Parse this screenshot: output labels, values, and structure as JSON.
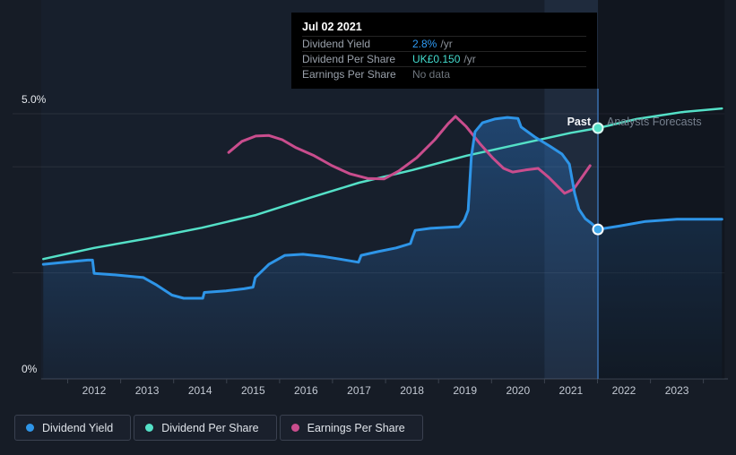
{
  "tooltip": {
    "date": "Jul 02 2021",
    "rows": [
      {
        "label": "Dividend Yield",
        "value": "2.8%",
        "suffix": "/yr",
        "value_color": "#2e9bf5"
      },
      {
        "label": "Dividend Per Share",
        "value": "UK£0.150",
        "suffix": "/yr",
        "value_color": "#43dcce"
      },
      {
        "label": "Earnings Per Share",
        "value": "No data",
        "suffix": "",
        "value_color": "#6e757d"
      }
    ]
  },
  "annotations": {
    "past_label": "Past",
    "forecast_label": "Analysts Forecasts"
  },
  "axis": {
    "y_top_label": "5.0%",
    "y_bottom_label": "0%",
    "years": [
      "2012",
      "2013",
      "2014",
      "2015",
      "2016",
      "2017",
      "2018",
      "2019",
      "2020",
      "2021",
      "2022",
      "2023"
    ]
  },
  "legend": [
    {
      "label": "Dividend Yield",
      "color": "#2e95e8"
    },
    {
      "label": "Dividend Per Share",
      "color": "#54e0c7"
    },
    {
      "label": "Earnings Per Share",
      "color": "#c94d8d"
    }
  ],
  "colors": {
    "divider": "#3a70b0",
    "band": "rgba(125,170,235,0.09)",
    "forecast_shade": "rgba(8,12,18,0.24)",
    "past_tint": "rgba(96,140,190,0.05)",
    "plot_bg": "#141a24",
    "gridline": "rgba(255,255,255,0.08)",
    "baseline": "#404856",
    "tick": "#3c434e",
    "area_fill_color": "#2d7dd2"
  },
  "chart_data": {
    "type": "line",
    "title": "Dividend history and forecast chart",
    "x_axis": {
      "unit": "year",
      "range": [
        2011.0,
        2023.9
      ],
      "tick_years": [
        2012,
        2013,
        2014,
        2015,
        2016,
        2017,
        2018,
        2019,
        2020,
        2021,
        2022,
        2023
      ]
    },
    "y_axis": {
      "unit": "percent",
      "range": [
        0,
        5
      ],
      "top_label": "5.0%",
      "bottom_label": "0%",
      "gridlines_pct": [
        5,
        4,
        2,
        0
      ]
    },
    "past_forecast_divider_year": 2021.51,
    "highlight_band_years": [
      2020.5,
      2021.51
    ],
    "selected_point": {
      "date": "Jul 02 2021",
      "dividend_yield": "2.8% /yr",
      "dividend_per_share": "UK£0.150 /yr",
      "earnings_per_share": "No data"
    },
    "series": [
      {
        "name": "Dividend Yield",
        "color": "#2e95e8",
        "area_fill": true,
        "points": [
          [
            2011.04,
            2.16
          ],
          [
            2011.45,
            2.2
          ],
          [
            2011.88,
            2.24
          ],
          [
            2011.97,
            2.24
          ],
          [
            2012.0,
            1.99
          ],
          [
            2012.42,
            1.96
          ],
          [
            2012.93,
            1.91
          ],
          [
            2013.18,
            1.77
          ],
          [
            2013.47,
            1.58
          ],
          [
            2013.69,
            1.52
          ],
          [
            2014.05,
            1.52
          ],
          [
            2014.08,
            1.63
          ],
          [
            2014.49,
            1.66
          ],
          [
            2014.83,
            1.7
          ],
          [
            2015.0,
            1.73
          ],
          [
            2015.04,
            1.91
          ],
          [
            2015.3,
            2.16
          ],
          [
            2015.6,
            2.33
          ],
          [
            2015.94,
            2.35
          ],
          [
            2016.31,
            2.31
          ],
          [
            2016.69,
            2.25
          ],
          [
            2016.99,
            2.2
          ],
          [
            2017.04,
            2.33
          ],
          [
            2017.36,
            2.4
          ],
          [
            2017.7,
            2.47
          ],
          [
            2017.97,
            2.55
          ],
          [
            2018.01,
            2.67
          ],
          [
            2018.06,
            2.8
          ],
          [
            2018.35,
            2.84
          ],
          [
            2018.89,
            2.87
          ],
          [
            2018.99,
            3.0
          ],
          [
            2019.06,
            3.18
          ],
          [
            2019.12,
            4.2
          ],
          [
            2019.19,
            4.66
          ],
          [
            2019.33,
            4.83
          ],
          [
            2019.56,
            4.9
          ],
          [
            2019.8,
            4.93
          ],
          [
            2020.0,
            4.91
          ],
          [
            2020.06,
            4.75
          ],
          [
            2020.32,
            4.56
          ],
          [
            2020.6,
            4.39
          ],
          [
            2020.83,
            4.24
          ],
          [
            2020.97,
            4.05
          ],
          [
            2021.07,
            3.5
          ],
          [
            2021.15,
            3.2
          ],
          [
            2021.27,
            3.02
          ],
          [
            2021.39,
            2.93
          ],
          [
            2021.51,
            2.82
          ],
          [
            2021.9,
            2.88
          ],
          [
            2022.41,
            2.97
          ],
          [
            2023.0,
            3.01
          ],
          [
            2023.85,
            3.01
          ]
        ]
      },
      {
        "name": "Dividend Per Share",
        "color": "#54e0c7",
        "area_fill": false,
        "note": "plotted on hidden per-share scale; UK£0.150/yr at 2021.51",
        "points": [
          [
            2011.04,
            2.26
          ],
          [
            2012.0,
            2.47
          ],
          [
            2013.02,
            2.65
          ],
          [
            2014.03,
            2.85
          ],
          [
            2015.05,
            3.09
          ],
          [
            2016.06,
            3.41
          ],
          [
            2017.0,
            3.7
          ],
          [
            2018.01,
            3.94
          ],
          [
            2019.03,
            4.21
          ],
          [
            2020.04,
            4.43
          ],
          [
            2021.0,
            4.64
          ],
          [
            2021.51,
            4.73
          ],
          [
            2022.24,
            4.9
          ],
          [
            2023.09,
            5.03
          ],
          [
            2023.85,
            5.1
          ]
        ]
      },
      {
        "name": "Earnings Per Share",
        "color": "#c94d8d",
        "area_fill": false,
        "note": "ends before selected date; tooltip shows No data",
        "points": [
          [
            2014.54,
            4.27
          ],
          [
            2014.79,
            4.48
          ],
          [
            2015.05,
            4.58
          ],
          [
            2015.3,
            4.59
          ],
          [
            2015.55,
            4.51
          ],
          [
            2015.81,
            4.36
          ],
          [
            2016.15,
            4.21
          ],
          [
            2016.49,
            4.02
          ],
          [
            2016.82,
            3.87
          ],
          [
            2017.16,
            3.78
          ],
          [
            2017.47,
            3.77
          ],
          [
            2017.75,
            3.92
          ],
          [
            2018.09,
            4.17
          ],
          [
            2018.43,
            4.51
          ],
          [
            2018.68,
            4.81
          ],
          [
            2018.82,
            4.95
          ],
          [
            2019.02,
            4.76
          ],
          [
            2019.28,
            4.44
          ],
          [
            2019.53,
            4.16
          ],
          [
            2019.73,
            3.97
          ],
          [
            2019.9,
            3.9
          ],
          [
            2020.14,
            3.94
          ],
          [
            2020.38,
            3.97
          ],
          [
            2020.58,
            3.8
          ],
          [
            2020.75,
            3.63
          ],
          [
            2020.88,
            3.5
          ],
          [
            2021.05,
            3.58
          ],
          [
            2021.22,
            3.82
          ],
          [
            2021.36,
            4.02
          ]
        ]
      }
    ],
    "markers": [
      {
        "series": "Dividend Per Share",
        "year": 2021.51,
        "pct": 4.73,
        "fill": "#54e0c7",
        "ring": "#dcf8f2"
      },
      {
        "series": "Dividend Yield",
        "year": 2021.51,
        "pct": 2.82,
        "fill": "#3fa7ea",
        "ring": "#ffffff"
      }
    ],
    "legend_position": "bottom-left",
    "grid": true
  }
}
